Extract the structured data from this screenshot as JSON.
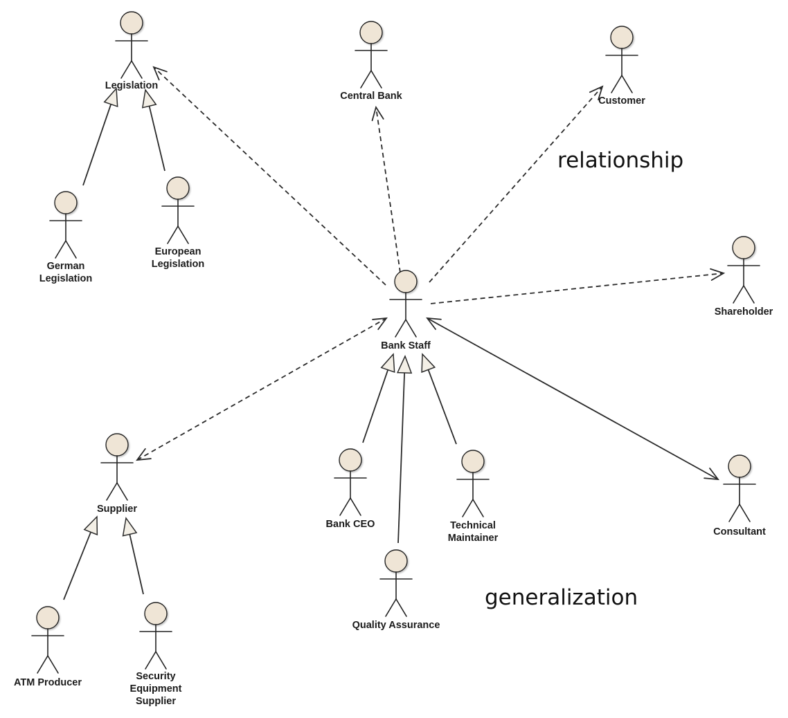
{
  "actors": [
    {
      "id": "legislation",
      "label": [
        "Legislation"
      ]
    },
    {
      "id": "german-legislation",
      "label": [
        "German",
        "Legislation"
      ]
    },
    {
      "id": "european-legislation",
      "label": [
        "European",
        "Legislation"
      ]
    },
    {
      "id": "central-bank",
      "label": [
        "Central Bank"
      ]
    },
    {
      "id": "customer",
      "label": [
        "Customer"
      ]
    },
    {
      "id": "shareholder",
      "label": [
        "Shareholder"
      ]
    },
    {
      "id": "bank-staff",
      "label": [
        "Bank Staff"
      ]
    },
    {
      "id": "supplier",
      "label": [
        "Supplier"
      ]
    },
    {
      "id": "atm-producer",
      "label": [
        "ATM Producer"
      ]
    },
    {
      "id": "security-equipment-supplier",
      "label": [
        "Security",
        "Equipment",
        "Supplier"
      ]
    },
    {
      "id": "bank-ceo",
      "label": [
        "Bank CEO"
      ]
    },
    {
      "id": "quality-assurance",
      "label": [
        "Quality Assurance"
      ]
    },
    {
      "id": "technical-maintainer",
      "label": [
        "Technical",
        "Maintainer"
      ]
    },
    {
      "id": "consultant",
      "label": [
        "Consultant"
      ]
    }
  ],
  "relationships": [
    {
      "from": "bank-staff",
      "to": "legislation",
      "kind": "dependency"
    },
    {
      "from": "bank-staff",
      "to": "central-bank",
      "kind": "dependency"
    },
    {
      "from": "bank-staff",
      "to": "customer",
      "kind": "dependency"
    },
    {
      "from": "bank-staff",
      "to": "shareholder",
      "kind": "dependency"
    },
    {
      "from": "supplier",
      "to": "bank-staff",
      "kind": "bidirectional-dependency"
    },
    {
      "from": "bank-staff",
      "to": "consultant",
      "kind": "bidirectional-association"
    },
    {
      "from": "german-legislation",
      "to": "legislation",
      "kind": "generalization"
    },
    {
      "from": "european-legislation",
      "to": "legislation",
      "kind": "generalization"
    },
    {
      "from": "atm-producer",
      "to": "supplier",
      "kind": "generalization"
    },
    {
      "from": "security-equipment-supplier",
      "to": "supplier",
      "kind": "generalization"
    },
    {
      "from": "bank-ceo",
      "to": "bank-staff",
      "kind": "generalization"
    },
    {
      "from": "quality-assurance",
      "to": "bank-staff",
      "kind": "generalization"
    },
    {
      "from": "technical-maintainer",
      "to": "bank-staff",
      "kind": "generalization"
    }
  ],
  "annotations": {
    "relationship": "relationship",
    "generalization": "generalization"
  }
}
